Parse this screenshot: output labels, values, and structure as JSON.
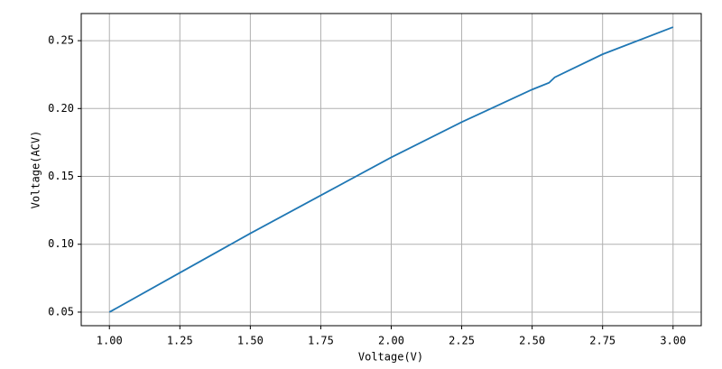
{
  "chart_data": {
    "type": "line",
    "xlabel": "Voltage(V)",
    "ylabel": "Voltage(ACV)",
    "x": [
      1.0,
      1.25,
      1.5,
      1.75,
      2.0,
      2.25,
      2.5,
      2.56,
      2.58,
      2.75,
      3.0
    ],
    "series": [
      {
        "name": "ACV",
        "color": "#1f77b4",
        "values": [
          0.05,
          0.079,
          0.108,
          0.136,
          0.164,
          0.19,
          0.214,
          0.219,
          0.223,
          0.24,
          0.26
        ]
      }
    ],
    "xlim": [
      0.9,
      3.1
    ],
    "xticks": [
      {
        "value": 1,
        "label": "1.00"
      },
      {
        "value": 1.25,
        "label": "1.25"
      },
      {
        "value": 1.5,
        "label": "1.50"
      },
      {
        "value": 1.75,
        "label": "1.75"
      },
      {
        "value": 2,
        "label": "2.00"
      },
      {
        "value": 2.25,
        "label": "2.25"
      },
      {
        "value": 2.5,
        "label": "2.50"
      },
      {
        "value": 2.75,
        "label": "2.75"
      },
      {
        "value": 3,
        "label": "3.00"
      }
    ],
    "ylim": [
      0.04,
      0.27
    ],
    "yticks": [
      0.05,
      {
        "value": 0.1,
        "label": "0.10"
      },
      0.15,
      {
        "value": 0.2,
        "label": "0.20"
      },
      0.25
    ],
    "grid": true
  }
}
